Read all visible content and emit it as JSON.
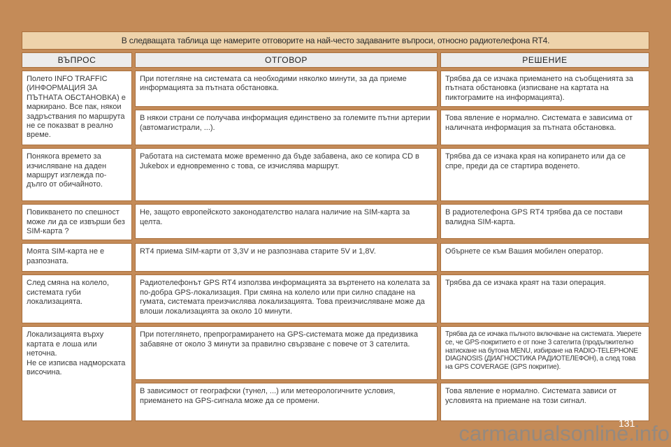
{
  "faq": {
    "intro": "В следващата таблица ще намерите отговорите на най-често задаваните въпроси, относно радиотелефона RT4.",
    "headers": {
      "question": "ВЪПРОС",
      "answer": "ОТГОВОР",
      "solution": "РЕШЕНИЕ"
    },
    "groups": [
      {
        "question": "Полето INFO TRAFFIC (ИНФОРМАЦИЯ ЗА ПЪТНАТА ОБСТАНОВКА) е маркирано. Все пак, някои задръствания по маршрута не се показват в реално време.",
        "pairs": [
          {
            "answer": "При потегляне на системата са необходими няколко минути, за да приеме информацията за пътната обстановка.",
            "solution": "Трябва да се изчака приемането на съобщенията за пътната обстановка (изписване на картата на пиктограмите на информацията)."
          },
          {
            "answer": "В някои страни се получава информация единствено за големите пътни артерии (автомагистрали, ...).",
            "solution": "Това явление е нормално. Системата е зависима от наличната информация за пътната обстановка."
          }
        ]
      },
      {
        "question": "Понякога времето за изчисляване на даден маршрут изглежда по-дълго от обичайното.",
        "pairs": [
          {
            "answer": "Работата на системата може временно да бъде забавена, ако се копира CD в Jukebox и едновременно с това, се изчислява маршрут.",
            "solution": "Трябва да се изчака края на копирането или да се спре, преди да се стартира воденето."
          }
        ]
      },
      {
        "question": "Повикването по спешност може ли да се извърши без SIM-карта ?",
        "pairs": [
          {
            "answer": "Не, защото европейското законодателство налага наличие на SIM-карта за целта.",
            "solution": "В радиотелефона GPS RT4 трябва да се постави валидна SIM-карта."
          }
        ]
      },
      {
        "question": "Моята SIM-карта не е разпозната.",
        "pairs": [
          {
            "answer": "RT4 приема SIM-карти от 3,3V и не разпознава старите 5V и 1,8V.",
            "solution": "Обърнете се към Вашия мобилен оператор."
          }
        ]
      },
      {
        "question": "След смяна на колело, системата губи локализацията.",
        "pairs": [
          {
            "answer": "Радиотелефонът GPS RT4 използва информацията за въртенето на колелата за по-добра GPS-локализация. При смяна на колело или при силно спадане на гумата, системата преизчислява локализацията. Това преизчисляване може да влоши локализацията за около 10 минути.",
            "solution": "Трябва да се изчака краят на тази операция."
          }
        ]
      },
      {
        "question": "Локализацията върху картата е лоша или неточна.\nНе се изписва надморската височина.",
        "pairs": [
          {
            "answer": "При потеглянето, препрограмирането на GPS-системата може да предизвика забавяне от около 3 минути за правилно свързване с повече от 3 сателита.",
            "solution": "Трябва да се изчака пълното включване на системата. Уверете се, че GPS-покритието е от поне 3 сателита (продължително натискане на бутона MENU, избиране на RADIO-TELEPHONE DIAGNOSIS (ДИАГНОСТИКА РАДИОТЕЛЕФОН), а след това на GPS COVERAGE (GPS покритие)."
          },
          {
            "answer": "В зависимост от географски (тунел, ...) или метеорологичните условия, приемането на GPS-сигнала може да се промени.",
            "solution": "Това явление е нормално. Системата зависи от условията на приемане на този сигнал."
          }
        ]
      }
    ]
  },
  "footer": {
    "page_number": "131",
    "watermark": "carmanualsonline.info"
  },
  "colors": {
    "page_background": "#c48b58",
    "intro_band": "#eed3ab",
    "header_band": "#ececec",
    "cell_background": "#ffffff",
    "cell_border": "#a96f3c",
    "watermark_gray": "#8a8a8a"
  }
}
